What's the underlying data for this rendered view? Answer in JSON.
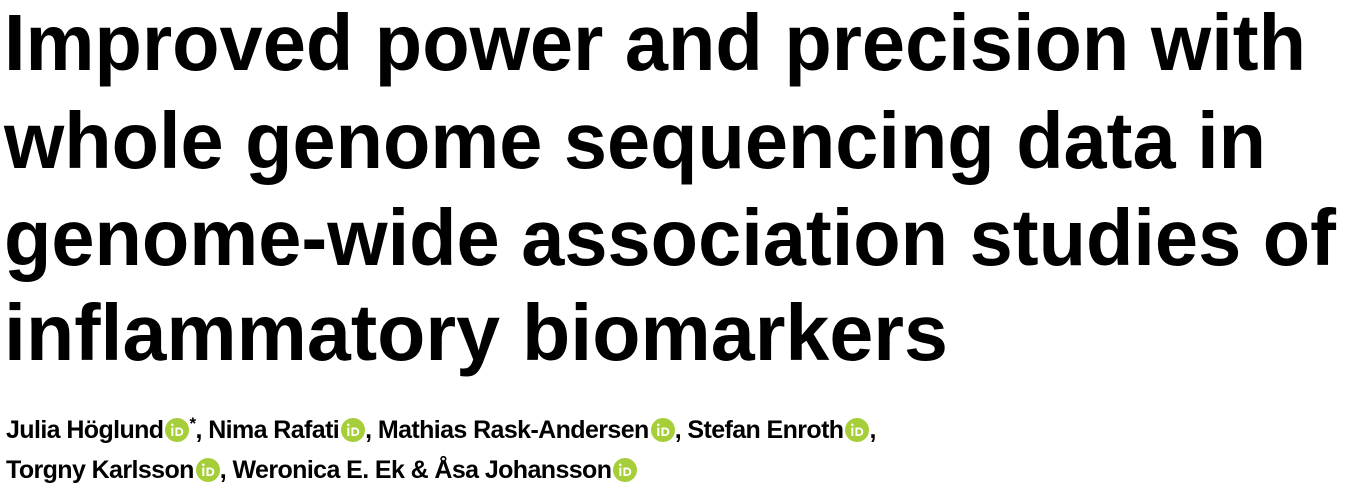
{
  "title_lines": [
    "Improved power and precision with",
    "whole genome sequencing data in",
    "genome-wide association studies of",
    "inflammatory biomarkers"
  ],
  "author_lines": [
    [
      {
        "name": "Julia Höglund",
        "orcid": true,
        "mark": "*",
        "sep": ", "
      },
      {
        "name": "Nima Rafati",
        "orcid": true,
        "sep": ", "
      },
      {
        "name": "Mathias Rask-Andersen",
        "orcid": true,
        "sep": ", "
      },
      {
        "name": "Stefan Enroth",
        "orcid": true,
        "sep": ","
      }
    ],
    [
      {
        "name": "Torgny Karlsson",
        "orcid": true,
        "sep": ", "
      },
      {
        "name": "Weronica E. Ek",
        "orcid": false,
        "sep": " & "
      },
      {
        "name": "Åsa Johansson",
        "orcid": true
      }
    ]
  ]
}
